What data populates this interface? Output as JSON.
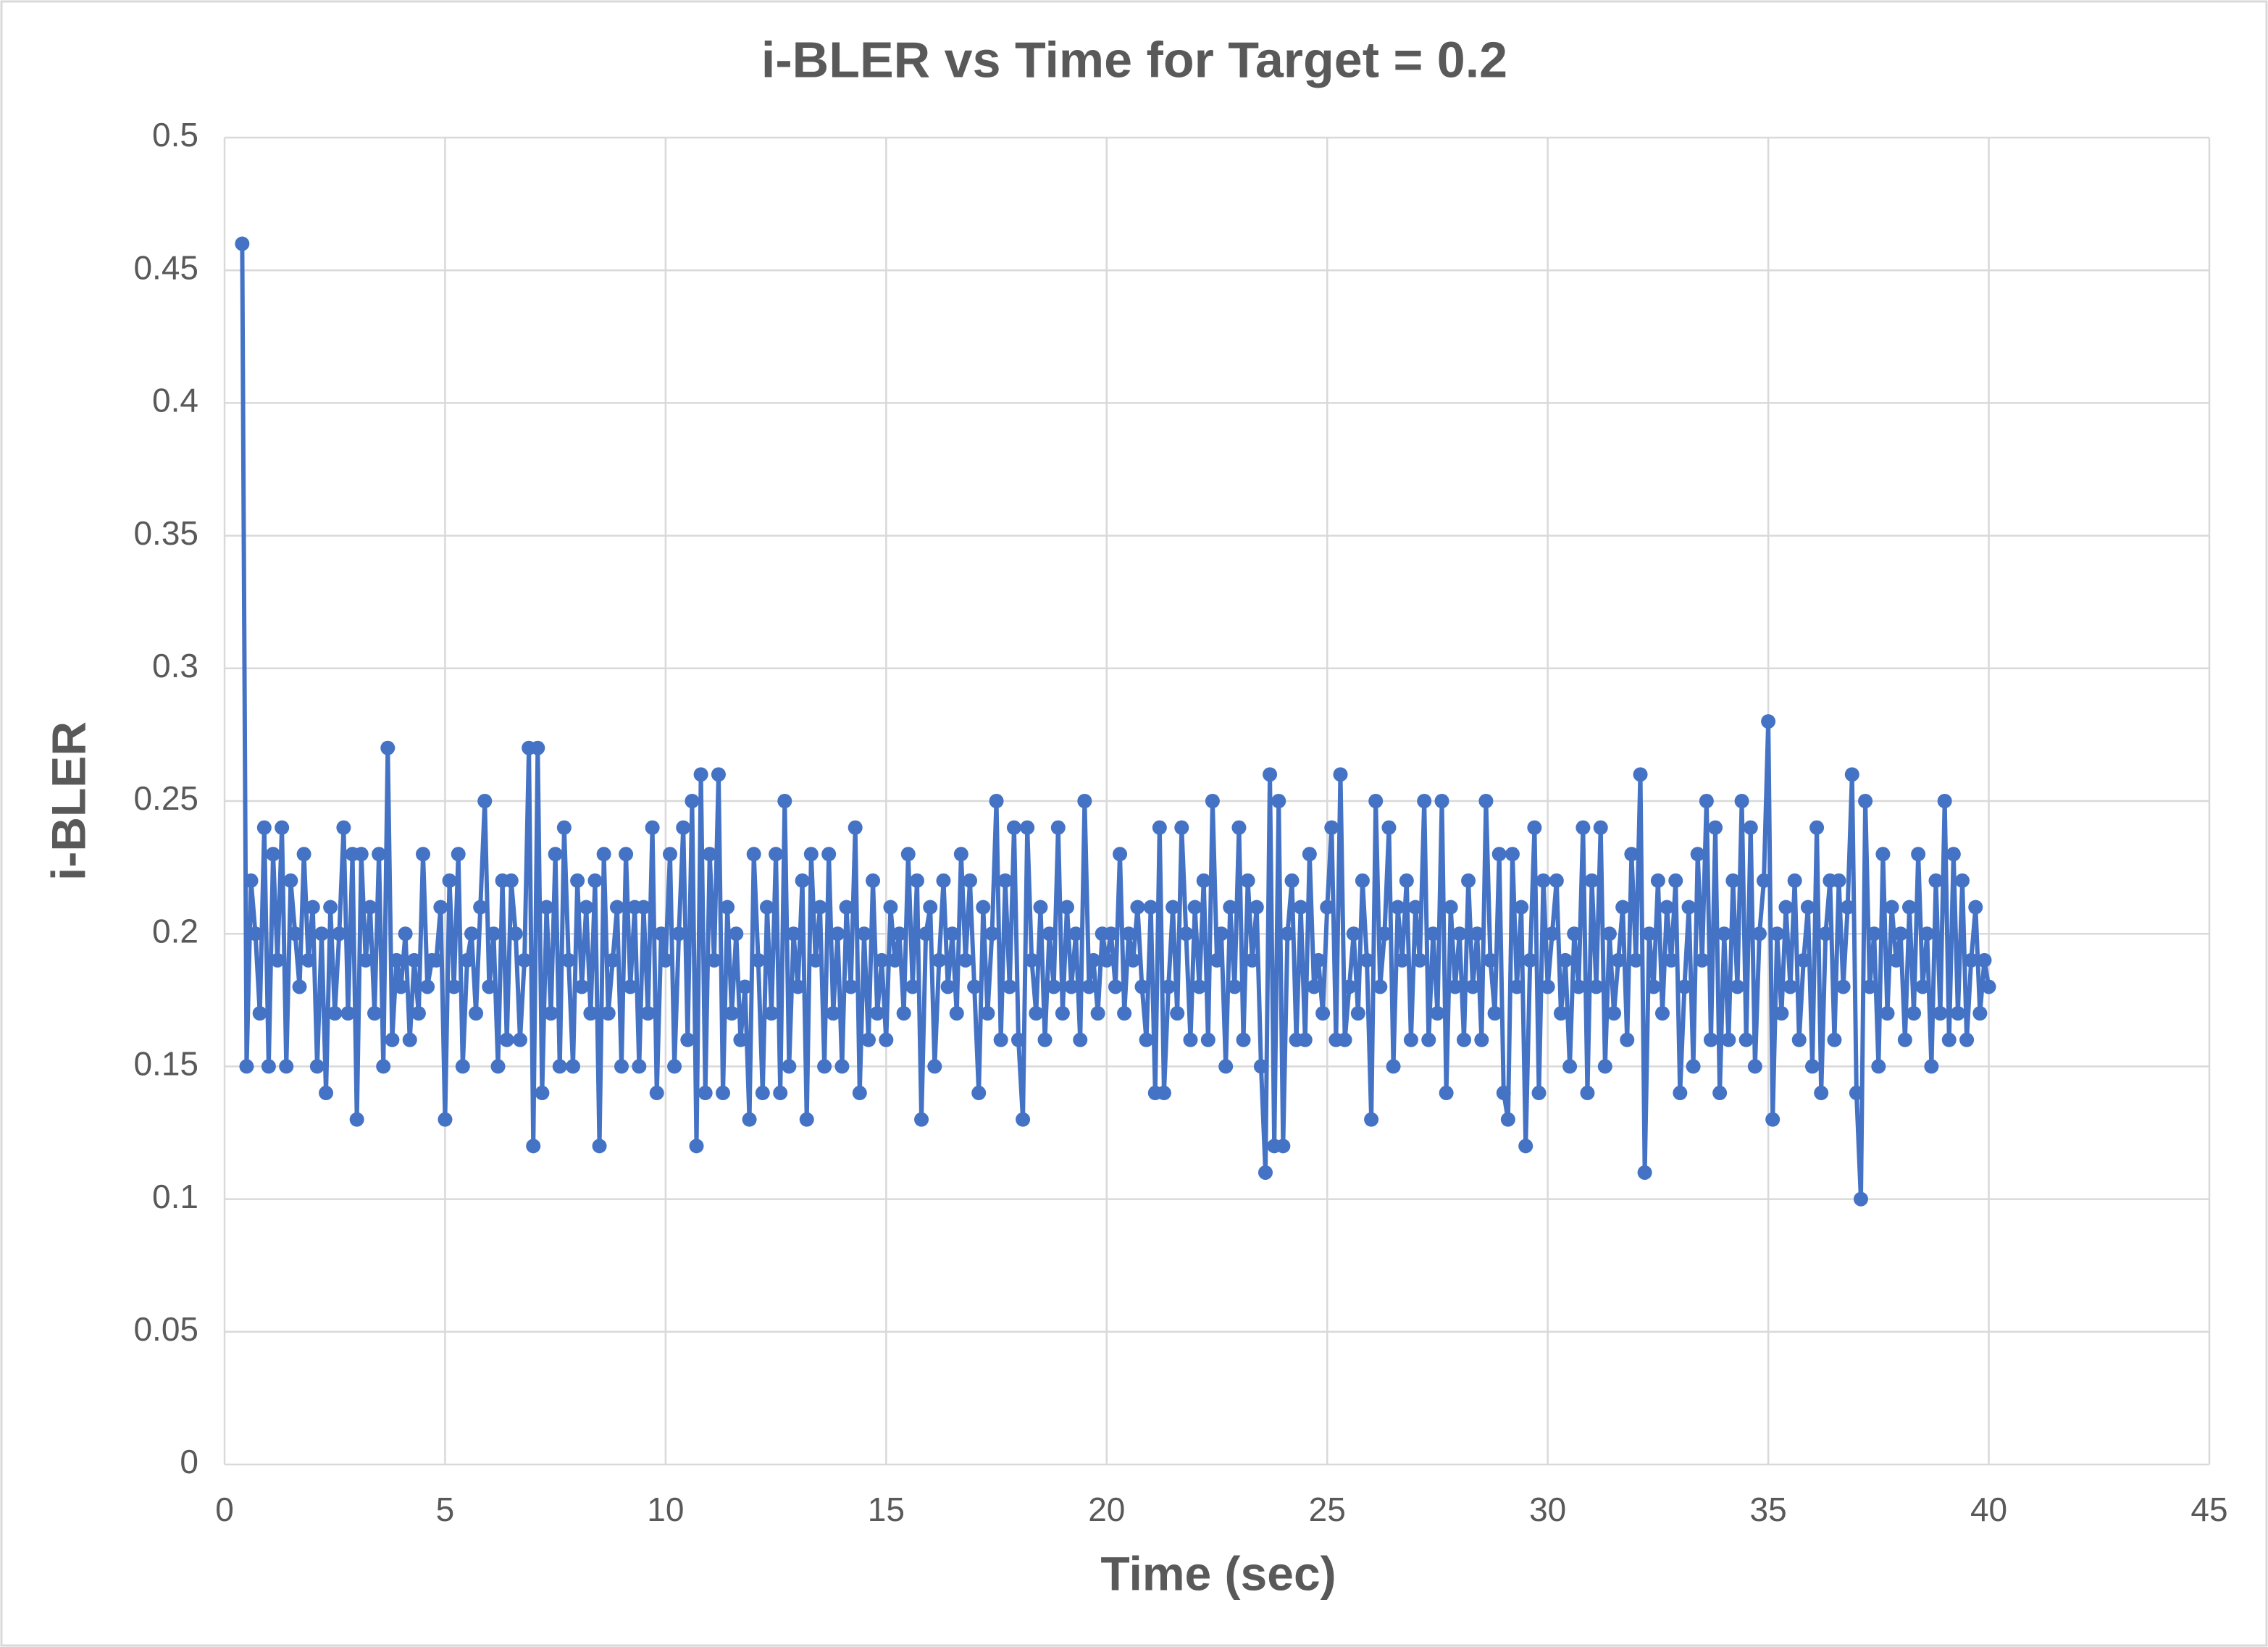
{
  "chart_data": {
    "type": "line",
    "title": "i-BLER vs Time for Target = 0.2",
    "x_label": "Time (sec)",
    "y_label": "i-BLER",
    "x": [
      0.4,
      0.5,
      0.6,
      0.7,
      0.8,
      0.9,
      1,
      1.1,
      1.2,
      1.3,
      1.4,
      1.5,
      1.6,
      1.7,
      1.8,
      1.9,
      2,
      2.1,
      2.2,
      2.3,
      2.4,
      2.5,
      2.6,
      2.7,
      2.8,
      2.9,
      3,
      3.1,
      3.2,
      3.3,
      3.4,
      3.5,
      3.6,
      3.7,
      3.8,
      3.9,
      4,
      4.1,
      4.2,
      4.3,
      4.4,
      4.5,
      4.6,
      4.7,
      4.8,
      4.9,
      5,
      5.1,
      5.2,
      5.3,
      5.4,
      5.5,
      5.6,
      5.7,
      5.8,
      5.9,
      6,
      6.1,
      6.2,
      6.3,
      6.4,
      6.5,
      6.6,
      6.7,
      6.8,
      6.9,
      7,
      7.1,
      7.2,
      7.3,
      7.4,
      7.5,
      7.6,
      7.7,
      7.8,
      7.9,
      8,
      8.1,
      8.2,
      8.3,
      8.4,
      8.5,
      8.6,
      8.7,
      8.8,
      8.9,
      9,
      9.1,
      9.2,
      9.3,
      9.4,
      9.5,
      9.6,
      9.7,
      9.8,
      9.9,
      10,
      10.1,
      10.2,
      10.3,
      10.4,
      10.5,
      10.6,
      10.7,
      10.8,
      10.9,
      11,
      11.1,
      11.2,
      11.3,
      11.4,
      11.5,
      11.6,
      11.7,
      11.8,
      11.9,
      12,
      12.1,
      12.2,
      12.3,
      12.4,
      12.5,
      12.6,
      12.7,
      12.8,
      12.9,
      13,
      13.1,
      13.2,
      13.3,
      13.4,
      13.5,
      13.6,
      13.7,
      13.8,
      13.9,
      14,
      14.1,
      14.2,
      14.3,
      14.4,
      14.5,
      14.6,
      14.7,
      14.8,
      14.9,
      15,
      15.1,
      15.2,
      15.3,
      15.4,
      15.5,
      15.6,
      15.7,
      15.8,
      15.9,
      16,
      16.1,
      16.2,
      16.3,
      16.4,
      16.5,
      16.6,
      16.7,
      16.8,
      16.9,
      17,
      17.1,
      17.2,
      17.3,
      17.4,
      17.5,
      17.6,
      17.7,
      17.8,
      17.9,
      18,
      18.1,
      18.2,
      18.3,
      18.4,
      18.5,
      18.6,
      18.7,
      18.8,
      18.9,
      19,
      19.1,
      19.2,
      19.3,
      19.4,
      19.5,
      19.6,
      19.7,
      19.8,
      19.9,
      20,
      20.1,
      20.2,
      20.3,
      20.4,
      20.5,
      20.6,
      20.7,
      20.8,
      20.9,
      21,
      21.1,
      21.2,
      21.3,
      21.4,
      21.5,
      21.6,
      21.7,
      21.8,
      21.9,
      22,
      22.1,
      22.2,
      22.3,
      22.4,
      22.5,
      22.6,
      22.7,
      22.8,
      22.9,
      23,
      23.1,
      23.2,
      23.3,
      23.4,
      23.5,
      23.6,
      23.7,
      23.8,
      23.9,
      24,
      24.1,
      24.2,
      24.3,
      24.4,
      24.5,
      24.6,
      24.7,
      24.8,
      24.9,
      25,
      25.1,
      25.2,
      25.3,
      25.4,
      25.5,
      25.6,
      25.7,
      25.8,
      25.9,
      26,
      26.1,
      26.2,
      26.3,
      26.4,
      26.5,
      26.6,
      26.7,
      26.8,
      26.9,
      27,
      27.1,
      27.2,
      27.3,
      27.4,
      27.5,
      27.6,
      27.7,
      27.8,
      27.9,
      28,
      28.1,
      28.2,
      28.3,
      28.4,
      28.5,
      28.6,
      28.7,
      28.8,
      28.9,
      29,
      29.1,
      29.2,
      29.3,
      29.4,
      29.5,
      29.6,
      29.7,
      29.8,
      29.9,
      30,
      30.1,
      30.2,
      30.3,
      30.4,
      30.5,
      30.6,
      30.7,
      30.8,
      30.9,
      31,
      31.1,
      31.2,
      31.3,
      31.4,
      31.5,
      31.6,
      31.7,
      31.8,
      31.9,
      32,
      32.1,
      32.2,
      32.3,
      32.4,
      32.5,
      32.6,
      32.7,
      32.8,
      32.9,
      33,
      33.1,
      33.2,
      33.3,
      33.4,
      33.5,
      33.6,
      33.7,
      33.8,
      33.9,
      34,
      34.1,
      34.2,
      34.3,
      34.4,
      34.5,
      34.6,
      34.7,
      34.8,
      34.9,
      35,
      35.1,
      35.2,
      35.3,
      35.4,
      35.5,
      35.6,
      35.7,
      35.8,
      35.9,
      36,
      36.1,
      36.2,
      36.3,
      36.4,
      36.5,
      36.6,
      36.7,
      36.8,
      36.9,
      37,
      37.1,
      37.2,
      37.3,
      37.4,
      37.5,
      37.6,
      37.7,
      37.8,
      37.9,
      38,
      38.1,
      38.2,
      38.3,
      38.4,
      38.5,
      38.6,
      38.7,
      38.8,
      38.9,
      39,
      39.1,
      39.2,
      39.3,
      39.4,
      39.5,
      39.6,
      39.7,
      39.8,
      39.9,
      40
    ],
    "series": [
      {
        "name": "i-BLER",
        "color": "#4472c4",
        "values": [
          0.46,
          0.15,
          0.22,
          0.2,
          0.17,
          0.24,
          0.15,
          0.23,
          0.19,
          0.24,
          0.15,
          0.22,
          0.2,
          0.18,
          0.23,
          0.19,
          0.21,
          0.15,
          0.2,
          0.14,
          0.21,
          0.17,
          0.2,
          0.24,
          0.17,
          0.23,
          0.13,
          0.23,
          0.19,
          0.21,
          0.17,
          0.23,
          0.15,
          0.27,
          0.16,
          0.19,
          0.18,
          0.2,
          0.16,
          0.19,
          0.17,
          0.23,
          0.18,
          0.19,
          0.19,
          0.21,
          0.13,
          0.22,
          0.18,
          0.23,
          0.15,
          0.19,
          0.2,
          0.17,
          0.21,
          0.25,
          0.18,
          0.2,
          0.15,
          0.22,
          0.16,
          0.22,
          0.2,
          0.16,
          0.19,
          0.27,
          0.12,
          0.27,
          0.14,
          0.21,
          0.17,
          0.23,
          0.15,
          0.24,
          0.19,
          0.15,
          0.22,
          0.18,
          0.21,
          0.17,
          0.22,
          0.12,
          0.23,
          0.17,
          0.19,
          0.21,
          0.15,
          0.23,
          0.18,
          0.21,
          0.15,
          0.21,
          0.17,
          0.24,
          0.14,
          0.2,
          0.19,
          0.23,
          0.15,
          0.2,
          0.24,
          0.16,
          0.25,
          0.12,
          0.26,
          0.14,
          0.23,
          0.19,
          0.26,
          0.14,
          0.21,
          0.17,
          0.2,
          0.16,
          0.18,
          0.13,
          0.23,
          0.19,
          0.14,
          0.21,
          0.17,
          0.23,
          0.14,
          0.25,
          0.15,
          0.2,
          0.18,
          0.22,
          0.13,
          0.23,
          0.19,
          0.21,
          0.15,
          0.23,
          0.17,
          0.2,
          0.15,
          0.21,
          0.18,
          0.24,
          0.14,
          0.2,
          0.16,
          0.22,
          0.17,
          0.19,
          0.16,
          0.21,
          0.19,
          0.2,
          0.17,
          0.23,
          0.18,
          0.22,
          0.13,
          0.2,
          0.21,
          0.15,
          0.19,
          0.22,
          0.18,
          0.2,
          0.17,
          0.23,
          0.19,
          0.22,
          0.18,
          0.14,
          0.21,
          0.17,
          0.2,
          0.25,
          0.16,
          0.22,
          0.18,
          0.24,
          0.16,
          0.13,
          0.24,
          0.19,
          0.17,
          0.21,
          0.16,
          0.2,
          0.18,
          0.24,
          0.17,
          0.21,
          0.18,
          0.2,
          0.16,
          0.25,
          0.18,
          0.19,
          0.17,
          0.2,
          0.19,
          0.2,
          0.18,
          0.23,
          0.17,
          0.2,
          0.19,
          0.21,
          0.18,
          0.16,
          0.21,
          0.14,
          0.24,
          0.14,
          0.18,
          0.21,
          0.17,
          0.24,
          0.2,
          0.16,
          0.21,
          0.18,
          0.22,
          0.16,
          0.25,
          0.19,
          0.2,
          0.15,
          0.21,
          0.18,
          0.24,
          0.16,
          0.22,
          0.19,
          0.21,
          0.15,
          0.11,
          0.26,
          0.12,
          0.25,
          0.12,
          0.2,
          0.22,
          0.16,
          0.21,
          0.16,
          0.23,
          0.18,
          0.19,
          0.17,
          0.21,
          0.24,
          0.16,
          0.26,
          0.16,
          0.18,
          0.2,
          0.17,
          0.22,
          0.19,
          0.13,
          0.25,
          0.18,
          0.2,
          0.24,
          0.15,
          0.21,
          0.19,
          0.22,
          0.16,
          0.21,
          0.19,
          0.25,
          0.16,
          0.2,
          0.17,
          0.25,
          0.14,
          0.21,
          0.18,
          0.2,
          0.16,
          0.22,
          0.18,
          0.2,
          0.16,
          0.25,
          0.19,
          0.17,
          0.23,
          0.14,
          0.13,
          0.23,
          0.18,
          0.21,
          0.12,
          0.19,
          0.24,
          0.14,
          0.22,
          0.18,
          0.2,
          0.22,
          0.17,
          0.19,
          0.15,
          0.2,
          0.18,
          0.24,
          0.14,
          0.22,
          0.18,
          0.24,
          0.15,
          0.2,
          0.17,
          0.19,
          0.21,
          0.16,
          0.23,
          0.19,
          0.26,
          0.11,
          0.2,
          0.18,
          0.22,
          0.17,
          0.21,
          0.19,
          0.22,
          0.14,
          0.18,
          0.21,
          0.15,
          0.23,
          0.19,
          0.25,
          0.16,
          0.24,
          0.14,
          0.2,
          0.16,
          0.22,
          0.18,
          0.25,
          0.16,
          0.24,
          0.15,
          0.2,
          0.22,
          0.28,
          0.13,
          0.2,
          0.17,
          0.21,
          0.18,
          0.22,
          0.16,
          0.19,
          0.21,
          0.15,
          0.24,
          0.14,
          0.2,
          0.22,
          0.16,
          0.22,
          0.18,
          0.21,
          0.26,
          0.14,
          0.1,
          0.25,
          0.18,
          0.2,
          0.15,
          0.23,
          0.17,
          0.21,
          0.19,
          0.2,
          0.16,
          0.21,
          0.17,
          0.23,
          0.18,
          0.2,
          0.15,
          0.22,
          0.17,
          0.25,
          0.16,
          0.23,
          0.17,
          0.22,
          0.16,
          0.19,
          0.21,
          0.17,
          0.19,
          0.18
        ]
      }
    ],
    "xlim": [
      0,
      45
    ],
    "xticks": [
      0,
      5,
      10,
      15,
      20,
      25,
      30,
      35,
      40,
      45
    ],
    "ylim": [
      0,
      0.5
    ],
    "yticks": [
      0,
      0.05,
      0.1,
      0.15,
      0.2,
      0.25,
      0.3,
      0.35,
      0.4,
      0.45,
      0.5
    ],
    "grid": true
  }
}
